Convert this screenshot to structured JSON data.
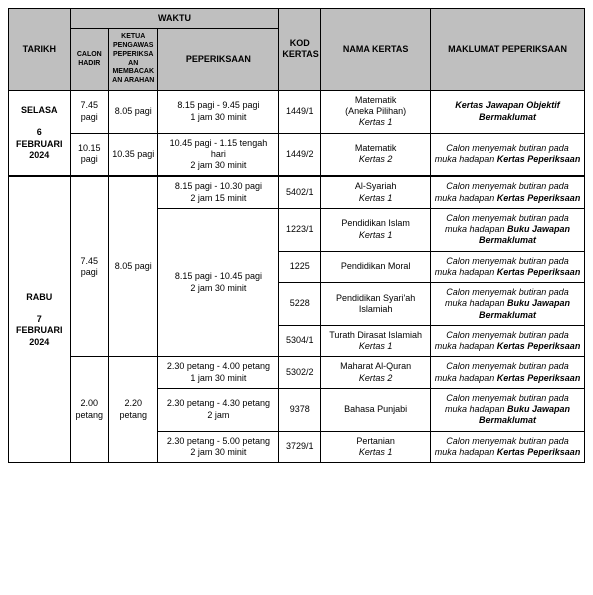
{
  "headers": {
    "tarikh": "TARIKH",
    "waktu": "WAKTU",
    "calon": "CALON HADIR",
    "ketua": "KETUA PENGAWAS PEPERIKSAAN MEMBACAKAN ARAHAN",
    "peperiksaan": "PEPERIKSAAN",
    "kod": "KOD KERTAS",
    "nama": "NAMA KERTAS",
    "maklumat": "MAKLUMAT PEPERIKSAAN"
  },
  "day1": {
    "label_line1": "SELASA",
    "label_line2": "6",
    "label_line3": "FEBRUARI",
    "label_line4": "2024",
    "s1": {
      "calon": "7.45 pagi",
      "ketua": "8.05 pagi",
      "periksa_l1": "8.15 pagi - 9.45 pagi",
      "periksa_l2": "1 jam 30 minit",
      "kod": "1449/1",
      "nama_l1": "Matematik",
      "nama_l2": "(Aneka Pilihan)",
      "nama_l3": "Kertas 1",
      "makl_b": "Kertas Jawapan Objektif Bermaklumat"
    },
    "s2": {
      "calon": "10.15 pagi",
      "ketua": "10.35 pagi",
      "periksa_l1": "10.45 pagi - 1.15 tengah hari",
      "periksa_l2": "2 jam 30 minit",
      "kod": "1449/2",
      "nama_l1": "Matematik",
      "nama_l3": "Kertas 2",
      "makl_pre": "Calon menyemak butiran pada muka hadapan ",
      "makl_b": "Kertas Peperiksaan"
    }
  },
  "day2": {
    "label_line1": "RABU",
    "label_line2": "7",
    "label_line3": "FEBRUARI",
    "label_line4": "2024",
    "morning": {
      "calon": "7.45 pagi",
      "ketua": "8.05 pagi"
    },
    "afternoon": {
      "calon": "2.00 petang",
      "ketua": "2.20 petang"
    },
    "r1": {
      "periksa_l1": "8.15 pagi - 10.30 pagi",
      "periksa_l2": "2 jam 15 minit",
      "kod": "5402/1",
      "nama_l1": "Al-Syariah",
      "nama_l2": "Kertas 1",
      "makl_pre": "Calon menyemak butiran pada muka hadapan ",
      "makl_b": "Kertas Peperiksaan"
    },
    "r2": {
      "kod": "1223/1",
      "nama_l1": "Pendidikan Islam",
      "nama_l2": "Kertas 1",
      "makl_pre": "Calon menyemak butiran pada muka hadapan ",
      "makl_b": "Buku Jawapan Bermaklumat"
    },
    "slot2": {
      "periksa_l1": "8.15 pagi - 10.45 pagi",
      "periksa_l2": "2 jam 30 minit"
    },
    "r3": {
      "kod": "1225",
      "nama_l1": "Pendidikan Moral",
      "makl_pre": "Calon menyemak butiran pada muka hadapan ",
      "makl_b": "Kertas Peperiksaan"
    },
    "r4": {
      "kod": "5228",
      "nama_l1": "Pendidikan Syari'ah Islamiah",
      "makl_pre": "Calon menyemak butiran pada muka hadapan ",
      "makl_b": "Buku Jawapan Bermaklumat"
    },
    "r5": {
      "kod": "5304/1",
      "nama_l1": "Turath Dirasat Islamiah",
      "nama_l2": "Kertas 1",
      "makl_pre": "Calon menyemak butiran pada muka hadapan ",
      "makl_b": "Kertas Peperiksaan"
    },
    "r6": {
      "periksa_l1": "2.30 petang - 4.00 petang",
      "periksa_l2": "1 jam 30 minit",
      "kod": "5302/2",
      "nama_l1": "Maharat Al-Quran",
      "nama_l2": "Kertas 2",
      "makl_pre": "Calon menyemak butiran pada muka hadapan ",
      "makl_b": "Kertas Peperiksaan"
    },
    "r7": {
      "periksa_l1": "2.30 petang - 4.30 petang",
      "periksa_l2": "2 jam",
      "kod": "9378",
      "nama_l1": "Bahasa Punjabi",
      "makl_pre": "Calon menyemak butiran pada muka hadapan ",
      "makl_b": "Buku Jawapan Bermaklumat"
    },
    "r8": {
      "periksa_l1": "2.30 petang - 5.00 petang",
      "periksa_l2": "2 jam 30 minit",
      "kod": "3729/1",
      "nama_l1": "Pertanian",
      "nama_l2": "Kertas 1",
      "makl_pre": "Calon menyemak butiran pada muka hadapan ",
      "makl_b": "Kertas Peperiksaan"
    }
  }
}
